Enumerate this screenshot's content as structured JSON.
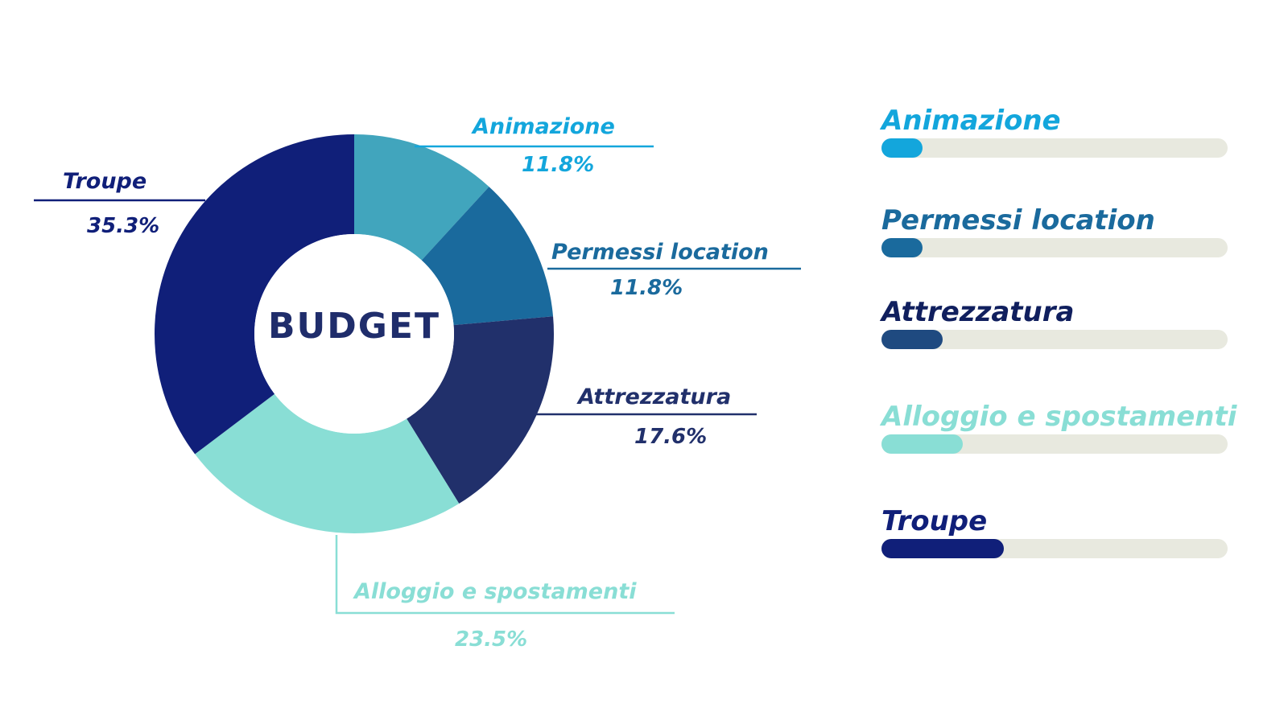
{
  "chart_data": {
    "type": "pie",
    "title": "BUDGET",
    "slices": [
      {
        "label": "Animazione",
        "value": 11.8,
        "display": "11.8%",
        "color": "#41a5bd"
      },
      {
        "label": "Permessi location",
        "value": 11.8,
        "display": "11.8%",
        "color": "#1a6a9d"
      },
      {
        "label": "Attrezzatura",
        "value": 17.6,
        "display": "17.6%",
        "color": "#21306b"
      },
      {
        "label": "Alloggio e spostamenti",
        "value": 23.5,
        "display": "23.5%",
        "color": "#89ded5"
      },
      {
        "label": "Troupe",
        "value": 35.3,
        "display": "35.3%",
        "color": "#101f79"
      }
    ]
  },
  "labels": {
    "animazione": {
      "name": "Animazione",
      "pct": "11.8%",
      "color": "#13a6dc"
    },
    "permessi": {
      "name": "Permessi location",
      "pct": "11.8%",
      "color": "#1a6a9d"
    },
    "attrezzatura": {
      "name": "Attrezzatura",
      "pct": "17.6%",
      "color": "#21306b"
    },
    "alloggio": {
      "name": "Alloggio e spostamenti",
      "pct": "23.5%",
      "color": "#89ded5"
    },
    "troupe": {
      "name": "Troupe",
      "pct": "35.3%",
      "color": "#101f79"
    }
  },
  "bars": [
    {
      "label": "Animazione",
      "value": 11.8,
      "color": "#13a6dc"
    },
    {
      "label": "Permessi location",
      "value": 11.8,
      "color": "#1a6a9d"
    },
    {
      "label": "Attrezzatura",
      "value": 17.6,
      "color": "#1f4a80"
    },
    {
      "label": "Alloggio e spostamenti",
      "value": 23.5,
      "color": "#89ded5"
    },
    {
      "label": "Troupe",
      "value": 35.3,
      "color": "#101f79"
    }
  ],
  "bar_label_colors": [
    "#13a6dc",
    "#1a6a9d",
    "#101f5e",
    "#89ded5",
    "#101f79"
  ],
  "bar_scale_max": 100
}
